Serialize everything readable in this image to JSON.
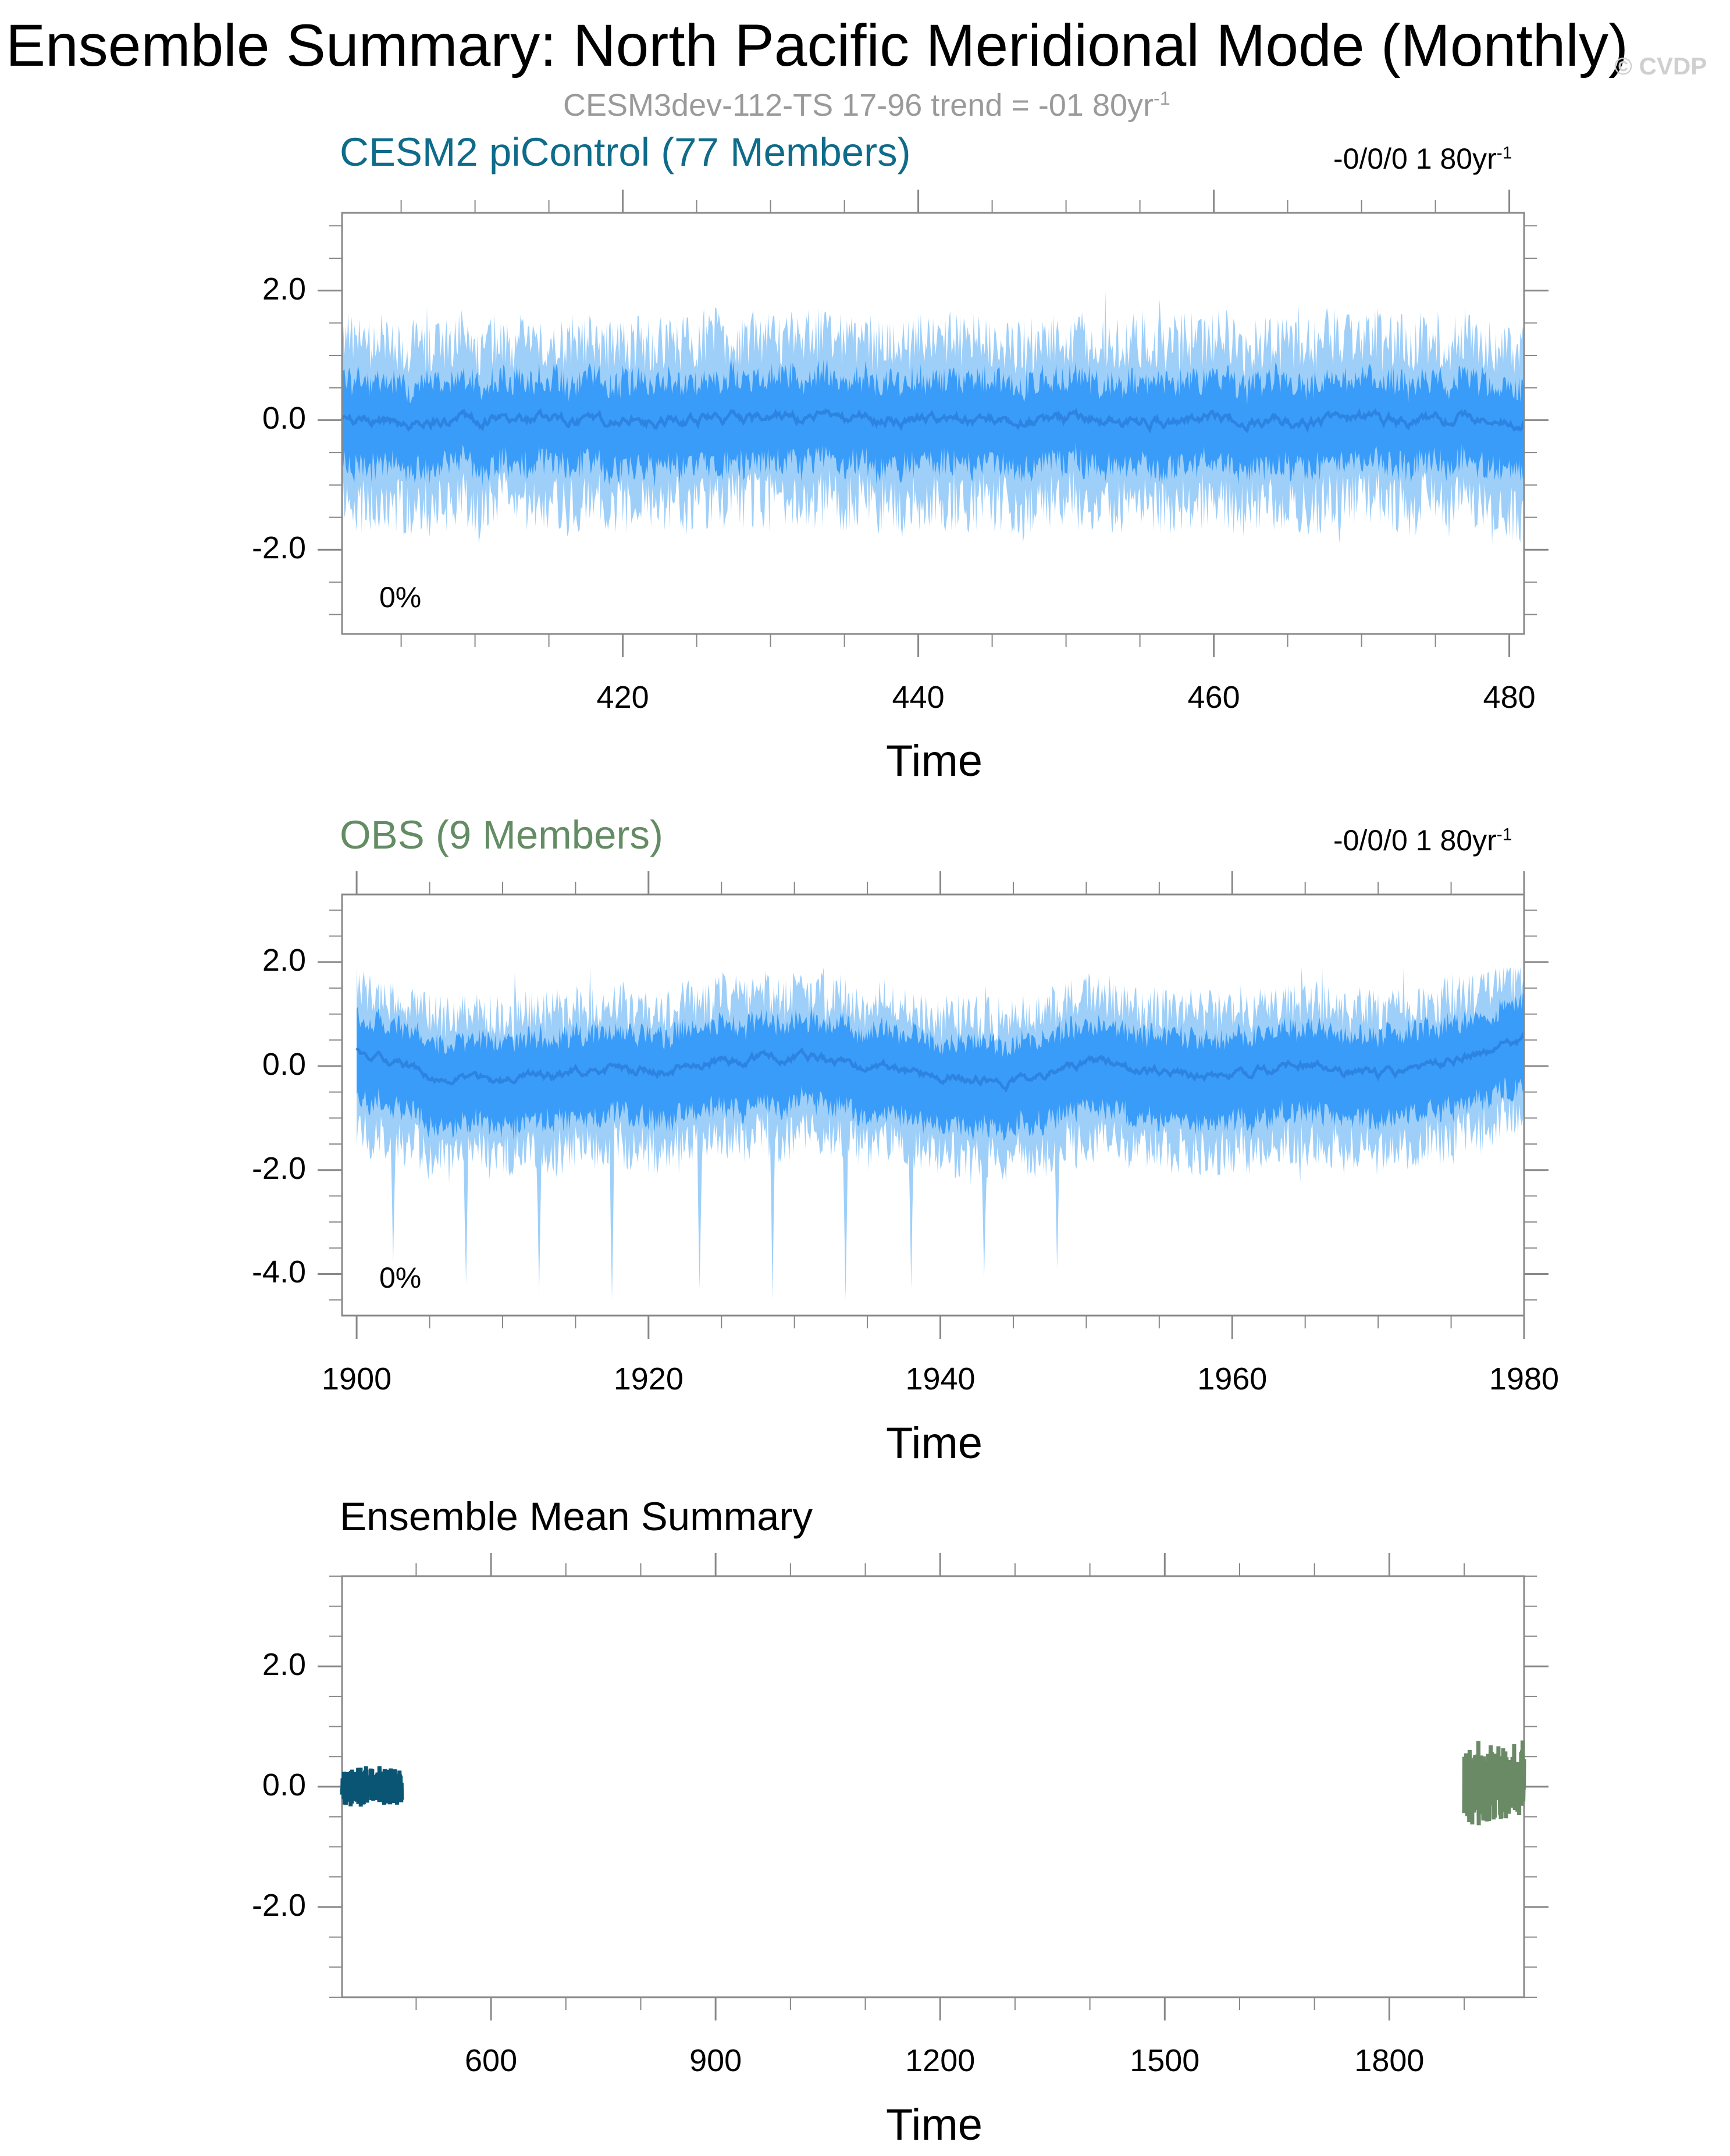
{
  "title": "Ensemble Summary: North Pacific Meridional Mode (Monthly)",
  "watermark": "© CVDP",
  "subtitle": "CESM3dev-112-TS 17-96 trend = -01 80yr",
  "subtitle_sup": "-1",
  "colors": {
    "outer_band": "#9ecff9",
    "inner_band": "#3a9cf9",
    "mean_line": "#2d84e0",
    "cesm_title": "#0e6b8a",
    "obs_title": "#648c64",
    "cesm_mean": "#0b5574",
    "obs_mean": "#6a8a66",
    "frame": "#888888"
  },
  "panels": [
    {
      "title": "CESM2 piControl (77 Members)",
      "trend": "-0/0/0 1 80yr",
      "trend_sup": "-1",
      "percent": "0%",
      "xlabel": "Time",
      "yticks": [
        "2.0",
        "0.0",
        "-2.0"
      ],
      "xticks": [
        "420",
        "440",
        "460",
        "480"
      ]
    },
    {
      "title": "OBS (9 Members)",
      "trend": "-0/0/0 1 80yr",
      "trend_sup": "-1",
      "percent": "0%",
      "xlabel": "Time",
      "yticks": [
        "2.0",
        "0.0",
        "-2.0",
        "-4.0"
      ],
      "xticks": [
        "1900",
        "1920",
        "1940",
        "1960",
        "1980"
      ]
    },
    {
      "title": "Ensemble Mean Summary",
      "xlabel": "Time",
      "yticks": [
        "2.0",
        "0.0",
        "-2.0"
      ],
      "xticks": [
        "600",
        "900",
        "1200",
        "1500",
        "1800"
      ]
    }
  ],
  "chart_data": [
    {
      "type": "area",
      "title": "CESM2 piControl (77 Members)",
      "xlabel": "Time",
      "ylabel": "",
      "xlim": [
        401,
        481
      ],
      "ylim": [
        -3.3,
        3.2
      ],
      "xticks": [
        420,
        440,
        460,
        480
      ],
      "yticks": [
        2.0,
        0.0,
        -2.0
      ],
      "series": [
        {
          "band": "outer",
          "x_range": [
            401,
            481
          ],
          "upper_approx": 1.2,
          "lower_approx": -1.3,
          "max": 2.0,
          "min": -1.9
        },
        {
          "band": "inner",
          "x_range": [
            401,
            481
          ],
          "upper_approx": 0.6,
          "lower_approx": -0.7
        },
        {
          "band": "mean",
          "x_range": [
            401,
            481
          ],
          "values_approx": [
            0.0,
            -0.1,
            0.1,
            0.3,
            0.0,
            -0.1,
            0.1,
            0.0,
            -0.1,
            0.0,
            0.1,
            -0.1,
            0.0,
            0.1,
            0.0,
            -0.1,
            0.2,
            0.0,
            -0.2
          ]
        }
      ]
    },
    {
      "type": "area",
      "title": "OBS (9 Members)",
      "xlabel": "Time",
      "ylabel": "",
      "xlim": [
        1899,
        1980
      ],
      "ylim": [
        -4.8,
        3.3
      ],
      "xticks": [
        1900,
        1920,
        1940,
        1960,
        1980
      ],
      "yticks": [
        2.0,
        0.0,
        -2.0,
        -4.0
      ],
      "series": [
        {
          "band": "outer",
          "x_range": [
            1900,
            1980
          ],
          "upper_approx": 1.2,
          "lower_approx": -1.5,
          "max": 1.9,
          "min": -4.6,
          "spikes": [
            [
              1902.5,
              -3.8
            ],
            [
              1907.5,
              -4.2
            ],
            [
              1912.5,
              -4.4
            ],
            [
              1917.5,
              -4.5
            ],
            [
              1923.5,
              -4.3
            ],
            [
              1928.5,
              -4.5
            ],
            [
              1933.5,
              -4.5
            ],
            [
              1938.0,
              -4.3
            ],
            [
              1943.0,
              -4.1
            ],
            [
              1948.0,
              -3.9
            ]
          ]
        },
        {
          "band": "inner",
          "x_range": [
            1900,
            1980
          ],
          "upper_approx": 0.7,
          "lower_approx": -0.9
        },
        {
          "band": "mean",
          "x": [
            1900,
            1905,
            1910,
            1915,
            1920,
            1925,
            1930,
            1935,
            1940,
            1945,
            1950,
            1955,
            1960,
            1965,
            1970,
            1975,
            1980
          ],
          "values_approx": [
            0.3,
            -0.2,
            -0.3,
            -0.1,
            -0.1,
            0.1,
            0.2,
            0.0,
            -0.2,
            -0.3,
            0.1,
            -0.1,
            -0.2,
            0.0,
            -0.2,
            0.1,
            0.5
          ]
        }
      ]
    },
    {
      "type": "line",
      "title": "Ensemble Mean Summary",
      "xlabel": "Time",
      "ylabel": "",
      "xlim": [
        401,
        1980
      ],
      "ylim": [
        -3.5,
        3.5
      ],
      "xticks": [
        600,
        900,
        1200,
        1500,
        1800
      ],
      "yticks": [
        2.0,
        0.0,
        -2.0
      ],
      "series": [
        {
          "name": "CESM2 piControl",
          "x_range": [
            401,
            481
          ],
          "y_range": [
            -0.3,
            0.4
          ],
          "mean": 0.0
        },
        {
          "name": "OBS",
          "x_range": [
            1900,
            1980
          ],
          "y_range": [
            -0.7,
            0.8
          ],
          "mean": 0.05
        }
      ]
    }
  ]
}
